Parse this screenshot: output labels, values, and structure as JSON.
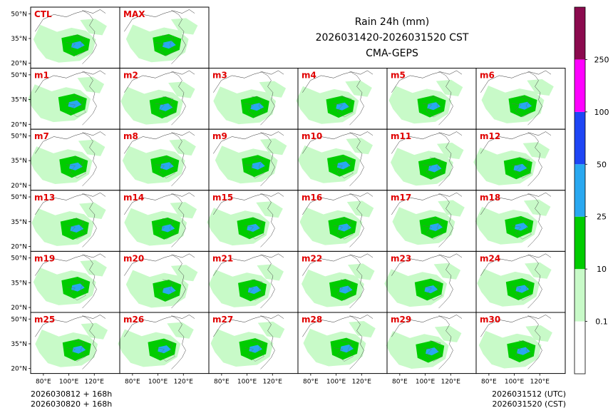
{
  "chart_data": {
    "type": "heatmap",
    "title_lines": [
      "Rain 24h (mm)",
      "2026031420-2026031520 CST",
      "CMA-GEPS"
    ],
    "panels_top": [
      "CTL",
      "MAX"
    ],
    "panels_members": [
      "m1",
      "m2",
      "m3",
      "m4",
      "m5",
      "m6",
      "m7",
      "m8",
      "m9",
      "m10",
      "m11",
      "m12",
      "m13",
      "m14",
      "m15",
      "m16",
      "m17",
      "m18",
      "m19",
      "m20",
      "m21",
      "m22",
      "m23",
      "m24",
      "m25",
      "m26",
      "m27",
      "m28",
      "m29",
      "m30"
    ],
    "lat_ticks": [
      "50°N",
      "35°N",
      "20°N"
    ],
    "lat_values": [
      50,
      35,
      20
    ],
    "lon_ticks": [
      "80°E",
      "100°E",
      "120°E"
    ],
    "lon_values": [
      80,
      100,
      120
    ],
    "lon_range": [
      70,
      140
    ],
    "lat_range": [
      17,
      54
    ],
    "colorbar": {
      "levels": [
        "0.1",
        "10",
        "25",
        "50",
        "100",
        "250"
      ],
      "colors": [
        "#ffffff",
        "#c8fac8",
        "#00cc00",
        "#29a8f0",
        "#1e46f5",
        "#ff00ff",
        "#8b0a4e"
      ]
    },
    "footer_left": [
      "2026030812 + 168h",
      "2026030820 + 168h"
    ],
    "footer_right": [
      "2026031512 (UTC)",
      "2026031520 (CST)"
    ]
  }
}
